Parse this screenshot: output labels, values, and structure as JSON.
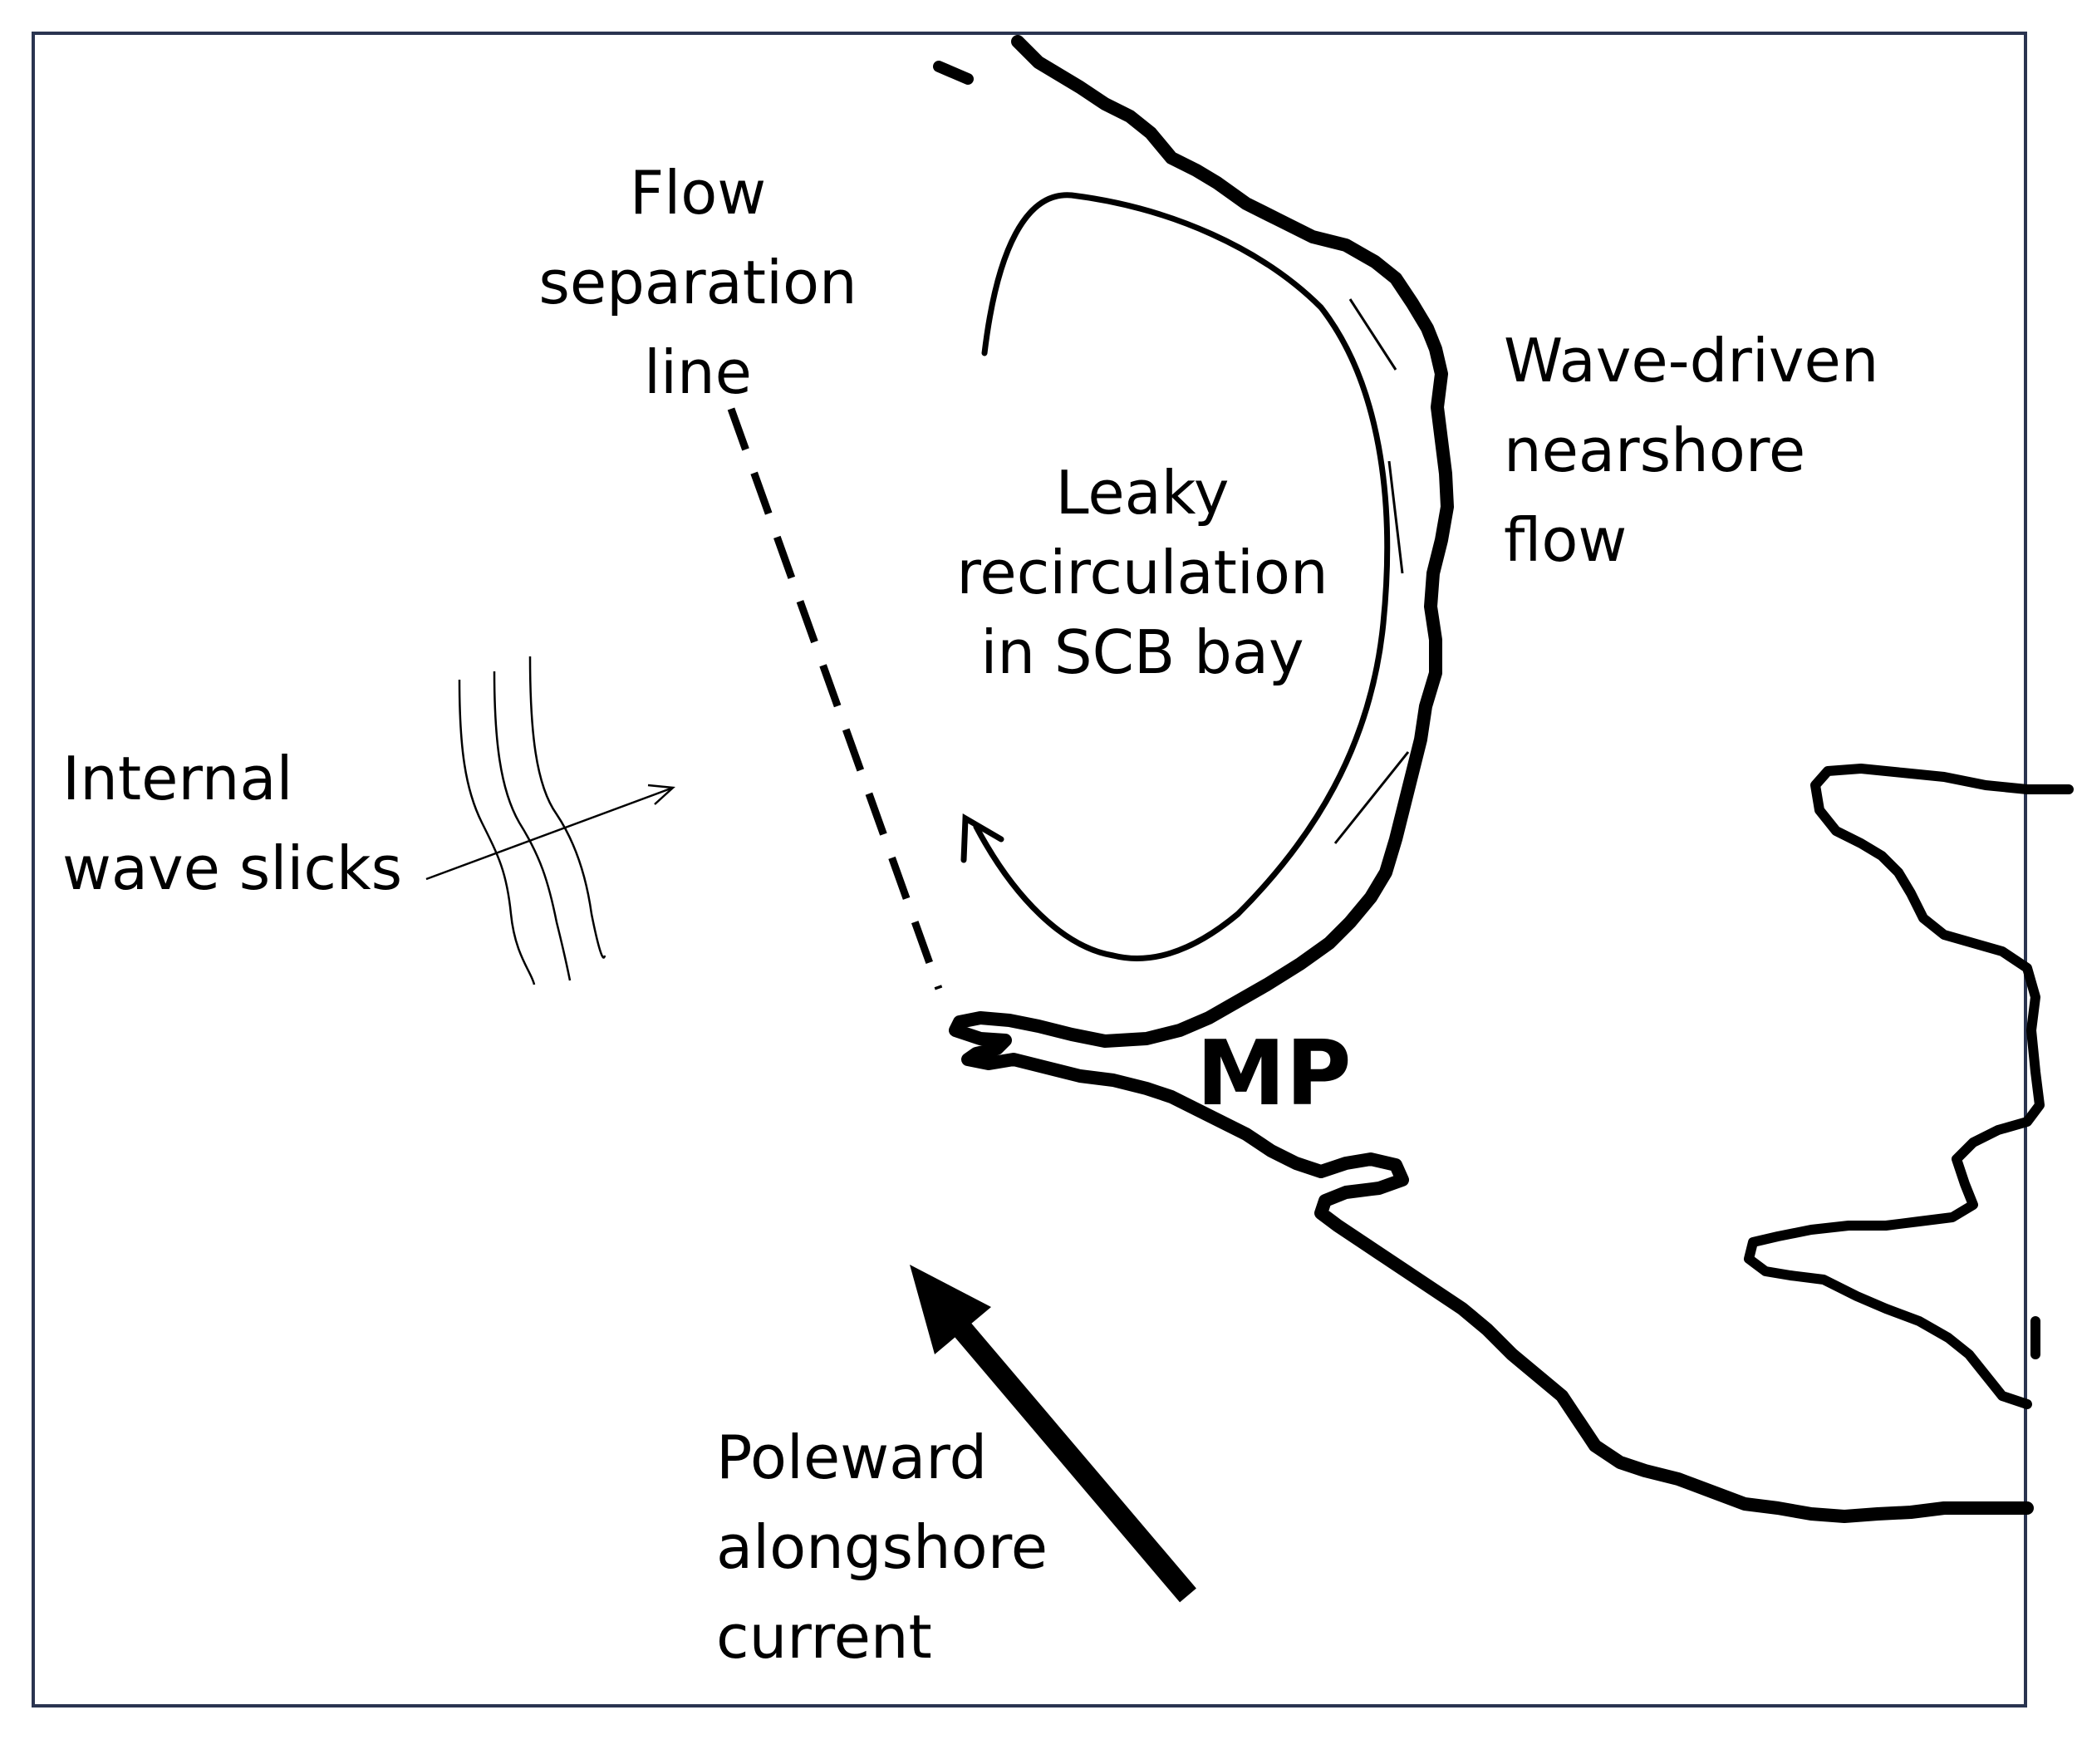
{
  "labels": {
    "flow_separation": [
      "Flow",
      "separation",
      "line"
    ],
    "wave_driven": [
      "Wave-driven",
      "nearshore",
      "flow"
    ],
    "leaky_recirculation": [
      "Leaky",
      "recirculation",
      "in SCB bay"
    ],
    "internal_wave": [
      "Internal",
      "wave slicks"
    ],
    "mp": "MP",
    "poleward": [
      "Poleward",
      "alongshore",
      "current"
    ]
  },
  "colors": {
    "ink": "#000000",
    "frame": "#2a3450",
    "background": "#ffffff"
  }
}
